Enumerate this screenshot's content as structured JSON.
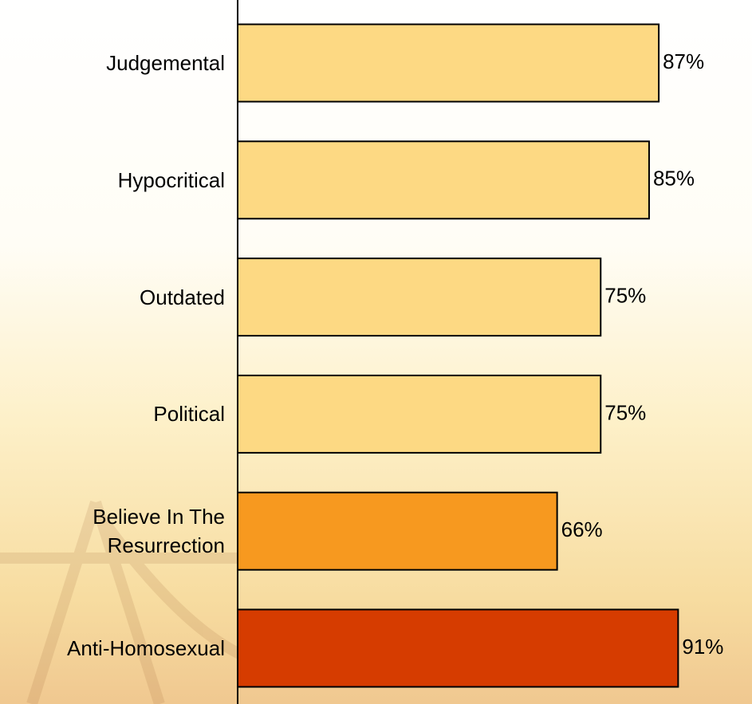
{
  "chart_data": {
    "type": "hbar",
    "categories": [
      "Judgemental",
      "Hypocritical",
      "Outdated",
      "Political",
      "Believe In The Resurrection",
      "Anti-Homosexual"
    ],
    "values": [
      87,
      85,
      75,
      75,
      66,
      91
    ],
    "value_labels": [
      "87%",
      "85%",
      "75%",
      "75%",
      "66%",
      "91%"
    ],
    "colors": [
      "#fdd983",
      "#fdd983",
      "#fdd983",
      "#fdd983",
      "#f7991f",
      "#d63c00"
    ],
    "xlim": [
      0,
      100
    ]
  }
}
